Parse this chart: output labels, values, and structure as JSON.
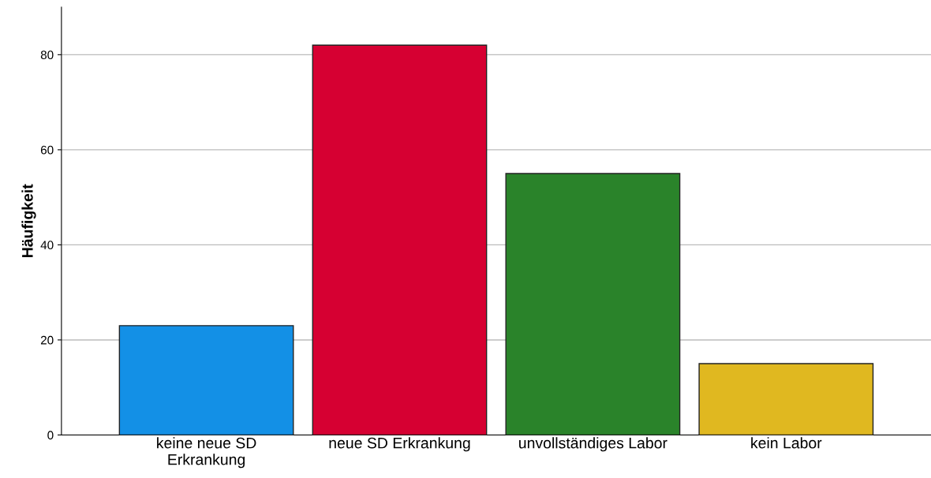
{
  "chart_data": {
    "type": "bar",
    "ylabel": "Häufigkeit",
    "categories": [
      "keine neue SD\nErkrankung",
      "neue SD Erkrankung",
      "unvollständiges Labor",
      "kein Labor"
    ],
    "values": [
      23,
      82,
      55,
      15
    ],
    "colors": [
      "#1390e6",
      "#d60032",
      "#2a832a",
      "#e0b820"
    ],
    "ylim": [
      0,
      90
    ],
    "yticks": [
      0,
      20,
      40,
      60,
      80
    ],
    "grid": "y",
    "legend": false
  }
}
